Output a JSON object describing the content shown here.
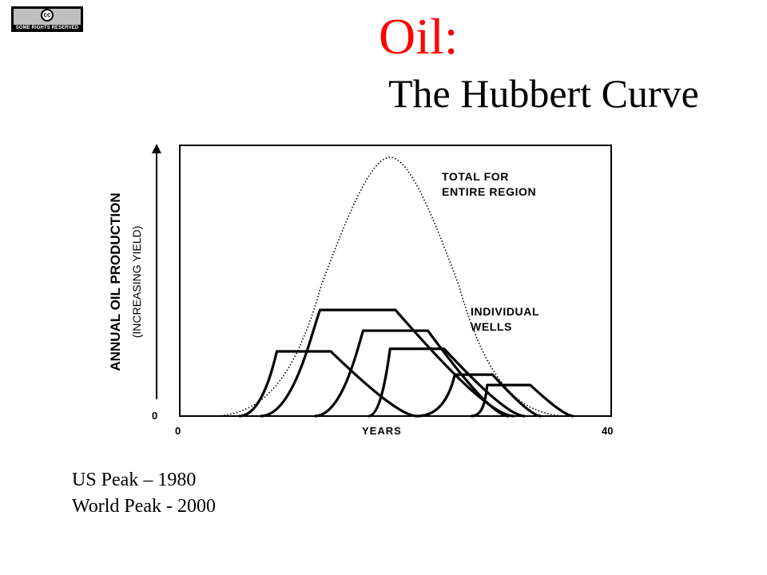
{
  "license_badge": {
    "text": "SOME RIGHTS RESERVED",
    "symbol": "cc"
  },
  "title": {
    "main": "Oil:",
    "sub": "The Hubbert Curve",
    "main_color": "#ff0000"
  },
  "chart_data": {
    "type": "line",
    "xlabel": "YEARS",
    "ylabel": "ANNUAL OIL PRODUCTION",
    "ylabel_sub": "(INCREASING YIELD)",
    "x_ticks": [
      "0",
      "40"
    ],
    "y_ticks": [
      "0"
    ],
    "xlim": [
      0,
      40
    ],
    "ylim": [
      0,
      100
    ],
    "grid": false,
    "annotations": [
      {
        "text": [
          "TOTAL FOR",
          "ENTIRE REGION"
        ]
      },
      {
        "text": [
          "INDIVIDUAL",
          "WELLS"
        ]
      }
    ],
    "total_curve": {
      "style": "dotted",
      "x": [
        3.5,
        19.5,
        35.5
      ],
      "y": [
        0,
        100,
        0
      ]
    },
    "wells": [
      {
        "x": [
          5.5,
          9.0,
          14.0,
          22.0
        ],
        "y": [
          0,
          25,
          25,
          0
        ]
      },
      {
        "x": [
          7.5,
          13.0,
          20.0,
          31.0
        ],
        "y": [
          0,
          41,
          41,
          0
        ]
      },
      {
        "x": [
          12.5,
          17.0,
          23.0,
          30.5
        ],
        "y": [
          0,
          33,
          33,
          0
        ]
      },
      {
        "x": [
          17.5,
          19.5,
          24.5,
          32.0
        ],
        "y": [
          0,
          26,
          26,
          0
        ]
      },
      {
        "x": [
          22.0,
          25.5,
          29.0,
          33.5
        ],
        "y": [
          0,
          16,
          16,
          0
        ]
      },
      {
        "x": [
          27.0,
          28.5,
          32.5,
          36.5
        ],
        "y": [
          0,
          12,
          12,
          0
        ]
      }
    ]
  },
  "notes": {
    "line1": "US Peak – 1980",
    "line2": "World Peak - 2000"
  }
}
